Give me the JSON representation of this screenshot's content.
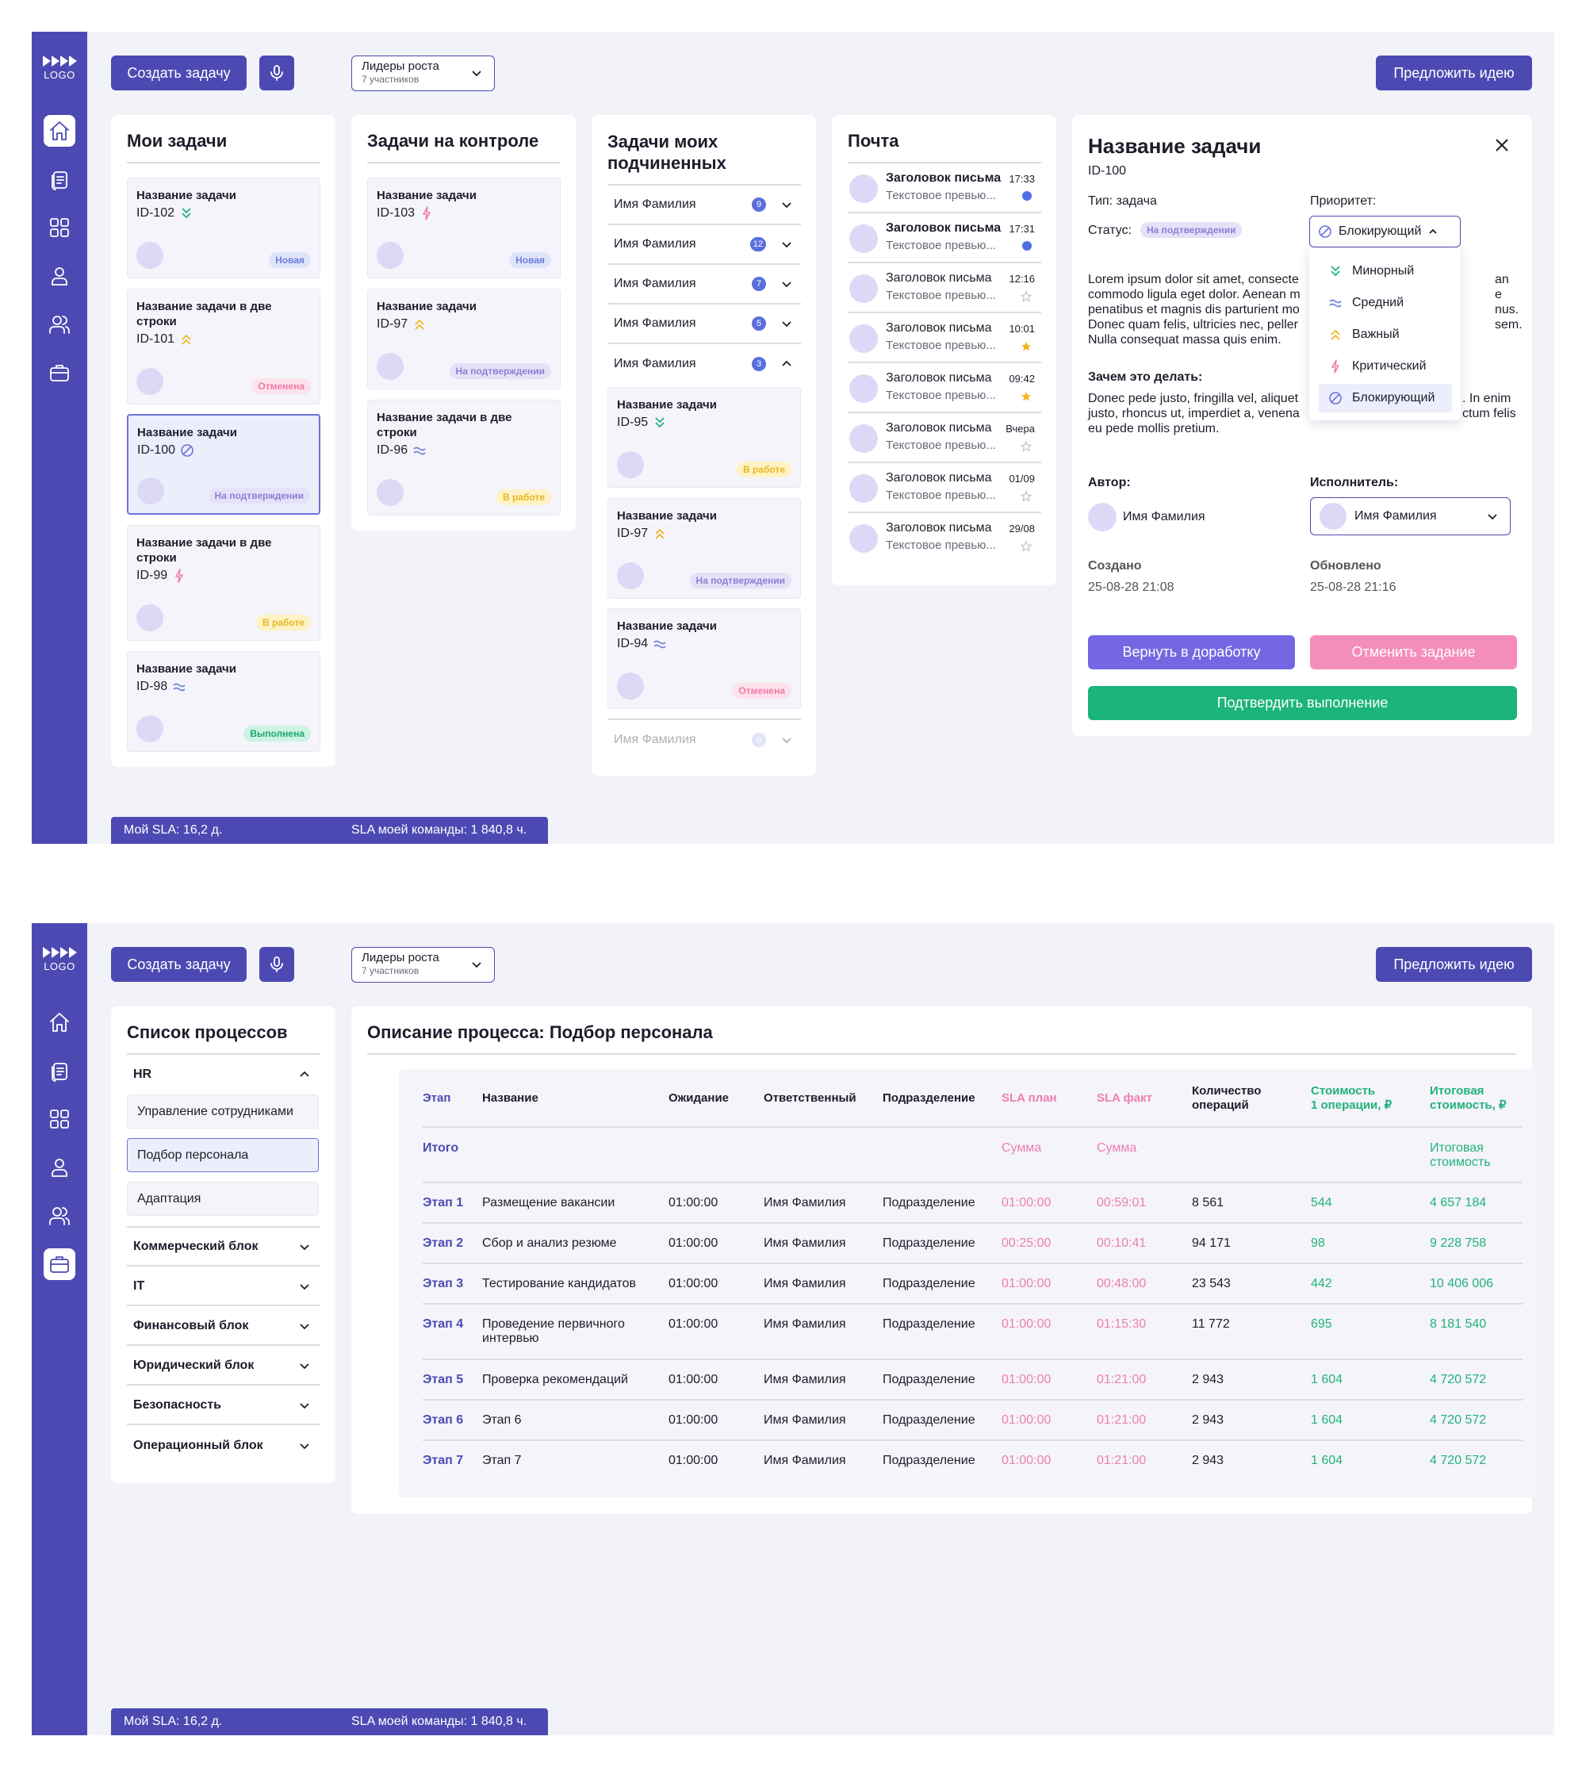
{
  "common": {
    "logo_text": "LOGO",
    "create_task": "Создать задачу",
    "group_name": "Лидеры роста",
    "group_members": "7 участников",
    "suggest_idea": "Предложить идею",
    "sla_mine": "Мой SLA: 16,2 д.",
    "sla_team": "SLA моей команды: 1 840,8 ч.",
    "nav_icons": [
      "home-icon",
      "document-icon",
      "grid-icon",
      "user-icon",
      "users-icon",
      "briefcase-icon"
    ],
    "accent": "#4c4ab2"
  },
  "screen1": {
    "my_tasks": {
      "title": "Мои задачи",
      "cards": [
        {
          "title": "Название задачи",
          "id": "ID-102",
          "priority": "minor",
          "status": "Новая"
        },
        {
          "title": "Название задачи в две строки",
          "id": "ID-101",
          "priority": "important",
          "status": "Отменена"
        },
        {
          "title": "Название задачи",
          "id": "ID-100",
          "priority": "blocking",
          "status": "На подтверждении"
        },
        {
          "title": "Название задачи в две строки",
          "id": "ID-99",
          "priority": "critical",
          "status": "В работе"
        },
        {
          "title": "Название задачи",
          "id": "ID-98",
          "priority": "medium",
          "status": "Выполнена"
        }
      ]
    },
    "control_tasks": {
      "title": "Задачи на контроле",
      "cards": [
        {
          "title": "Название задачи",
          "id": "ID-103",
          "priority": "critical",
          "status": "Новая"
        },
        {
          "title": "Название задачи",
          "id": "ID-97",
          "priority": "important",
          "status": "На подтверждении"
        },
        {
          "title": "Название задачи в две строки",
          "id": "ID-96",
          "priority": "medium",
          "status": "В работе"
        }
      ]
    },
    "subordinates": {
      "title": "Задачи моих подчиненных",
      "people": [
        {
          "name": "Имя Фамилия",
          "count": "9"
        },
        {
          "name": "Имя Фамилия",
          "count": "12"
        },
        {
          "name": "Имя Фамилия",
          "count": "7"
        },
        {
          "name": "Имя Фамилия",
          "count": "5"
        },
        {
          "name": "Имя Фамилия",
          "count": "3"
        }
      ],
      "cards": [
        {
          "title": "Название задачи",
          "id": "ID-95",
          "priority": "minor",
          "status": "В работе"
        },
        {
          "title": "Название задачи",
          "id": "ID-97",
          "priority": "important",
          "status": "На подтверждении"
        },
        {
          "title": "Название задачи",
          "id": "ID-94",
          "priority": "medium",
          "status": "Отменена"
        }
      ],
      "last_person": {
        "name": "Имя Фамилия",
        "count": "0"
      }
    },
    "mail": {
      "title": "Почта",
      "items": [
        {
          "subject": "Заголовок письма",
          "preview": "Текстовое превью...",
          "time": "17:33",
          "marker": "unread",
          "bold": true
        },
        {
          "subject": "Заголовок письма",
          "preview": "Текстовое превью...",
          "time": "17:31",
          "marker": "unread",
          "bold": true
        },
        {
          "subject": "Заголовок письма",
          "preview": "Текстовое превью...",
          "time": "12:16",
          "marker": "star-empty",
          "bold": false
        },
        {
          "subject": "Заголовок письма",
          "preview": "Текстовое превью...",
          "time": "10:01",
          "marker": "star-filled",
          "bold": false
        },
        {
          "subject": "Заголовок письма",
          "preview": "Текстовое превью...",
          "time": "09:42",
          "marker": "star-filled",
          "bold": false
        },
        {
          "subject": "Заголовок письма",
          "preview": "Текстовое превью...",
          "time": "Вчера",
          "marker": "star-empty",
          "bold": false
        },
        {
          "subject": "Заголовок письма",
          "preview": "Текстовое превью...",
          "time": "01/09",
          "marker": "star-empty",
          "bold": false
        },
        {
          "subject": "Заголовок письма",
          "preview": "Текстовое превью...",
          "time": "29/08",
          "marker": "star-empty",
          "bold": false
        }
      ]
    },
    "detail": {
      "title": "Название задачи",
      "id": "ID-100",
      "type": "Тип: задача",
      "status_label": "Статус:",
      "status_value": "На подтверждении",
      "priority_label": "Приоритет:",
      "priority_value": "Блокирующий",
      "priority_options": [
        {
          "label": "Минорный",
          "icon": "minor"
        },
        {
          "label": "Средний",
          "icon": "medium"
        },
        {
          "label": "Важный",
          "icon": "important"
        },
        {
          "label": "Критический",
          "icon": "critical"
        },
        {
          "label": "Блокирующий",
          "icon": "blocking"
        }
      ],
      "desc_lines": [
        "Lorem ipsum dolor sit amet, consecte",
        "commodo ligula eget dolor. Aenean m",
        "penatibus et magnis dis parturient mo",
        "Donec quam felis, ultricies nec, peller",
        "Nulla consequat massa quis enim."
      ],
      "desc_tails": [
        "an",
        "e",
        "nus.",
        "sem."
      ],
      "why_label": "Зачем это делать:",
      "why_lines": [
        "Donec pede justo, fringilla vel, aliquet",
        "justo, rhoncus ut, imperdiet a, venena",
        "eu pede mollis pretium."
      ],
      "why_tails": [
        ". In enim",
        "ctum felis"
      ],
      "author_label": "Автор:",
      "author_name": "Имя Фамилия",
      "assignee_label": "Исполнитель:",
      "assignee_name": "Имя Фамилия",
      "created_label": "Создано",
      "created_value": "25-08-28 21:08",
      "updated_label": "Обновлено",
      "updated_value": "25-08-28 21:16",
      "btn_return": "Вернуть в доработку",
      "btn_cancel": "Отменить задание",
      "btn_confirm": "Подтвердить выполнение"
    }
  },
  "screen2": {
    "process_list": {
      "title": "Список процессов",
      "hr": "HR",
      "hr_items": [
        "Управление сотрудниками",
        "Подбор персонала",
        "Адаптация"
      ],
      "blocks": [
        "Коммерческий блок",
        "IT",
        "Финансовый блок",
        "Юридический блок",
        "Безопасность",
        "Операционный блок"
      ]
    },
    "process": {
      "title": "Описание процесса: Подбор персонала",
      "headers": {
        "stage": "Этап",
        "name": "Название",
        "wait": "Ожидание",
        "owner": "Ответственный",
        "dept": "Подразделение",
        "sla_plan": "SLA план",
        "sla_fact": "SLA факт",
        "ops": [
          "Количество",
          "операций"
        ],
        "op_cost": [
          "Стоимость",
          "1 операции, ₽"
        ],
        "total": [
          "Итоговая",
          "стоимость, ₽"
        ]
      },
      "total_row": {
        "label": "Итого",
        "sla_plan": "Сумма",
        "sla_fact": "Сумма",
        "total": [
          "Итоговая",
          "стоимость"
        ]
      },
      "rows": [
        {
          "stage": "Этап 1",
          "name": [
            "Размещение вакансии"
          ],
          "wait": "01:00:00",
          "owner": "Имя Фамилия",
          "dept": "Подразделение",
          "sla_plan": "01:00:00",
          "sla_fact": "00:59:01",
          "ops": "8 561",
          "op_cost": "544",
          "total": "4 657 184"
        },
        {
          "stage": "Этап 2",
          "name": [
            "Сбор и анализ резюме"
          ],
          "wait": "01:00:00",
          "owner": "Имя Фамилия",
          "dept": "Подразделение",
          "sla_plan": "00:25:00",
          "sla_fact": "00:10:41",
          "ops": "94 171",
          "op_cost": "98",
          "total": "9 228 758"
        },
        {
          "stage": "Этап 3",
          "name": [
            "Тестирование кандидатов"
          ],
          "wait": "01:00:00",
          "owner": "Имя Фамилия",
          "dept": "Подразделение",
          "sla_plan": "01:00:00",
          "sla_fact": "00:48:00",
          "ops": "23 543",
          "op_cost": "442",
          "total": "10 406 006"
        },
        {
          "stage": "Этап 4",
          "name": [
            "Проведение первичного",
            "интервью"
          ],
          "wait": "01:00:00",
          "owner": "Имя Фамилия",
          "dept": "Подразделение",
          "sla_plan": "01:00:00",
          "sla_fact": "01:15:30",
          "ops": "11 772",
          "op_cost": "695",
          "total": "8 181 540"
        },
        {
          "stage": "Этап 5",
          "name": [
            "Проверка рекомендаций"
          ],
          "wait": "01:00:00",
          "owner": "Имя Фамилия",
          "dept": "Подразделение",
          "sla_plan": "01:00:00",
          "sla_fact": "01:21:00",
          "ops": "2 943",
          "op_cost": "1 604",
          "total": "4 720 572"
        },
        {
          "stage": "Этап 6",
          "name": [
            "Этап 6"
          ],
          "wait": "01:00:00",
          "owner": "Имя Фамилия",
          "dept": "Подразделение",
          "sla_plan": "01:00:00",
          "sla_fact": "01:21:00",
          "ops": "2 943",
          "op_cost": "1 604",
          "total": "4 720 572"
        },
        {
          "stage": "Этап 7",
          "name": [
            "Этап 7"
          ],
          "wait": "01:00:00",
          "owner": "Имя Фамилия",
          "dept": "Подразделение",
          "sla_plan": "01:00:00",
          "sla_fact": "01:21:00",
          "ops": "2 943",
          "op_cost": "1 604",
          "total": "4 720 572"
        }
      ]
    }
  }
}
